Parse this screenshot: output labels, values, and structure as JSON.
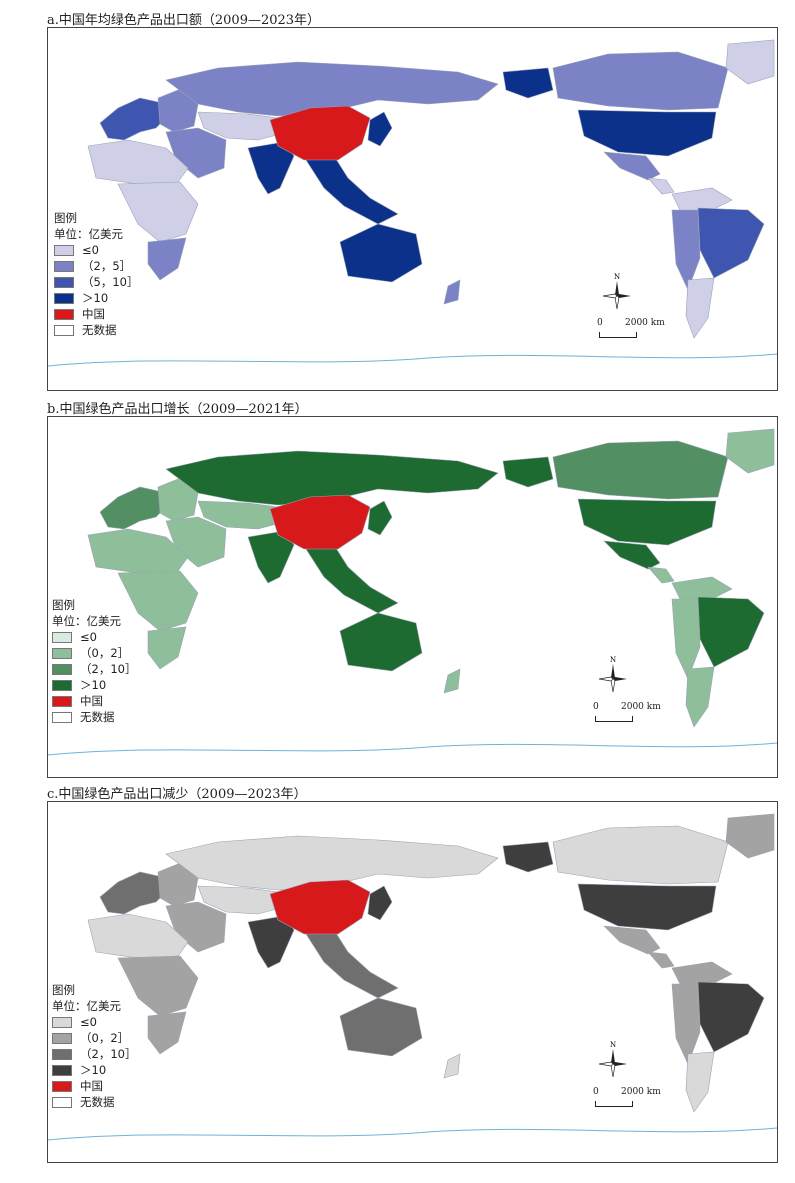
{
  "panels": [
    {
      "title": "a.中国年均绿色产品出口额（2009—2023年）",
      "legend": {
        "heading": "图例",
        "unit": "单位：亿美元",
        "items": [
          {
            "label": "≤0",
            "color": "#cfd0e8"
          },
          {
            "label": "（2，5］",
            "color": "#7b83c6"
          },
          {
            "label": "（5，10］",
            "color": "#3f56b0"
          },
          {
            "label": "＞10",
            "color": "#0b318a"
          },
          {
            "label": "中国",
            "color": "#d7191c"
          },
          {
            "label": "无数据",
            "color": "#ffffff"
          }
        ]
      },
      "scale": {
        "zero": "0",
        "dist": "2000 km"
      },
      "north": "N"
    },
    {
      "title": "b.中国绿色产品出口增长（2009—2021年）",
      "legend": {
        "heading": "图例",
        "unit": "单位：亿美元",
        "items": [
          {
            "label": "≤0",
            "color": "#d8ebde"
          },
          {
            "label": "（0，2］",
            "color": "#8fbf9a"
          },
          {
            "label": "（2，10］",
            "color": "#529064"
          },
          {
            "label": "＞10",
            "color": "#1d6b30"
          },
          {
            "label": "中国",
            "color": "#d7191c"
          },
          {
            "label": "无数据",
            "color": "#ffffff"
          }
        ]
      },
      "scale": {
        "zero": "0",
        "dist": "2000 km"
      },
      "north": "N"
    },
    {
      "title": "c.中国绿色产品出口减少（2009—2023年）",
      "legend": {
        "heading": "图例",
        "unit": "单位：亿美元",
        "items": [
          {
            "label": "≤0",
            "color": "#d9d9d9"
          },
          {
            "label": "（0，2］",
            "color": "#a3a3a3"
          },
          {
            "label": "（2，10］",
            "color": "#6f6f6f"
          },
          {
            "label": "＞10",
            "color": "#3e3e3e"
          },
          {
            "label": "中国",
            "color": "#d7191c"
          },
          {
            "label": "无数据",
            "color": "#ffffff"
          }
        ]
      },
      "scale": {
        "zero": "0",
        "dist": "2000 km"
      },
      "north": "N"
    }
  ],
  "country_classes": [
    {
      "region": "europe-west",
      "a": 3,
      "b": 3,
      "c": 3
    },
    {
      "region": "europe-east",
      "a": 2,
      "b": 2,
      "c": 2
    },
    {
      "region": "russia",
      "a": 2,
      "b": 4,
      "c": 1
    },
    {
      "region": "central-asia",
      "a": 1,
      "b": 2,
      "c": 1
    },
    {
      "region": "middle-east",
      "a": 2,
      "b": 2,
      "c": 2
    },
    {
      "region": "south-asia",
      "a": 4,
      "b": 4,
      "c": 4
    },
    {
      "region": "southeast-asia",
      "a": 4,
      "b": 4,
      "c": 3
    },
    {
      "region": "japan-korea",
      "a": 4,
      "b": 4,
      "c": 4
    },
    {
      "region": "africa-north",
      "a": 1,
      "b": 2,
      "c": 1
    },
    {
      "region": "africa-central",
      "a": 1,
      "b": 2,
      "c": 2
    },
    {
      "region": "africa-south",
      "a": 2,
      "b": 2,
      "c": 2
    },
    {
      "region": "australia",
      "a": 4,
      "b": 4,
      "c": 3
    },
    {
      "region": "new-zealand",
      "a": 2,
      "b": 2,
      "c": 1
    },
    {
      "region": "alaska",
      "a": 4,
      "b": 4,
      "c": 4
    },
    {
      "region": "canada",
      "a": 2,
      "b": 3,
      "c": 1
    },
    {
      "region": "usa",
      "a": 4,
      "b": 4,
      "c": 4
    },
    {
      "region": "mexico",
      "a": 2,
      "b": 4,
      "c": 2
    },
    {
      "region": "central-america",
      "a": 1,
      "b": 2,
      "c": 2
    },
    {
      "region": "greenland",
      "a": 1,
      "b": 2,
      "c": 2
    },
    {
      "region": "south-america-north",
      "a": 1,
      "b": 2,
      "c": 2
    },
    {
      "region": "brazil",
      "a": 3,
      "b": 4,
      "c": 4
    },
    {
      "region": "andes",
      "a": 2,
      "b": 2,
      "c": 2
    },
    {
      "region": "argentina",
      "a": 1,
      "b": 2,
      "c": 1
    },
    {
      "region": "china",
      "a": 5,
      "b": 5,
      "c": 5
    }
  ]
}
